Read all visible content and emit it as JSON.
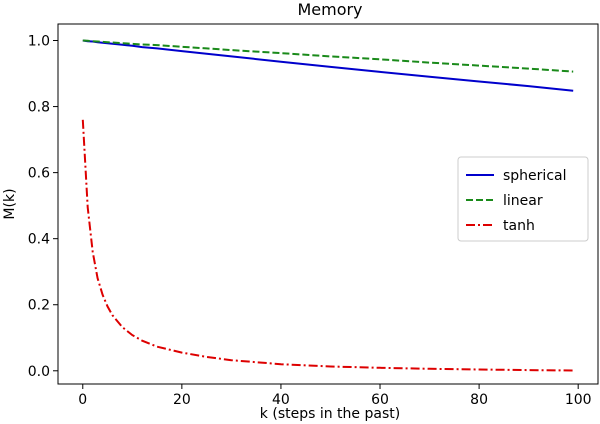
{
  "chart_data": {
    "type": "line",
    "title": "Memory",
    "xlabel": "k (steps in the past)",
    "ylabel": "M(k)",
    "xlim": [
      -5,
      104
    ],
    "ylim": [
      -0.04,
      1.05
    ],
    "xticks": [
      0,
      20,
      40,
      60,
      80,
      100
    ],
    "yticks": [
      0.0,
      0.2,
      0.4,
      0.6,
      0.8,
      1.0
    ],
    "grid": false,
    "legend_position": "center-right",
    "x": [
      0,
      1,
      2,
      3,
      4,
      5,
      6,
      8,
      10,
      12,
      15,
      20,
      25,
      30,
      40,
      50,
      60,
      70,
      80,
      90,
      99
    ],
    "series": [
      {
        "name": "spherical",
        "color": "#0000cc",
        "style": "solid",
        "values": [
          1.0,
          0.998,
          0.997,
          0.995,
          0.993,
          0.992,
          0.99,
          0.987,
          0.984,
          0.98,
          0.976,
          0.968,
          0.96,
          0.952,
          0.936,
          0.92,
          0.905,
          0.89,
          0.876,
          0.862,
          0.848
        ]
      },
      {
        "name": "linear",
        "color": "#1a8a1a",
        "style": "dashed",
        "values": [
          1.0,
          0.999,
          0.998,
          0.997,
          0.996,
          0.995,
          0.994,
          0.992,
          0.99,
          0.988,
          0.986,
          0.981,
          0.976,
          0.971,
          0.962,
          0.952,
          0.943,
          0.933,
          0.924,
          0.915,
          0.906
        ]
      },
      {
        "name": "tanh",
        "color": "#dd0000",
        "style": "dashdot",
        "values": [
          0.76,
          0.495,
          0.36,
          0.28,
          0.23,
          0.195,
          0.168,
          0.132,
          0.108,
          0.091,
          0.073,
          0.055,
          0.042,
          0.032,
          0.02,
          0.013,
          0.009,
          0.006,
          0.004,
          0.002,
          0.001
        ]
      }
    ]
  }
}
